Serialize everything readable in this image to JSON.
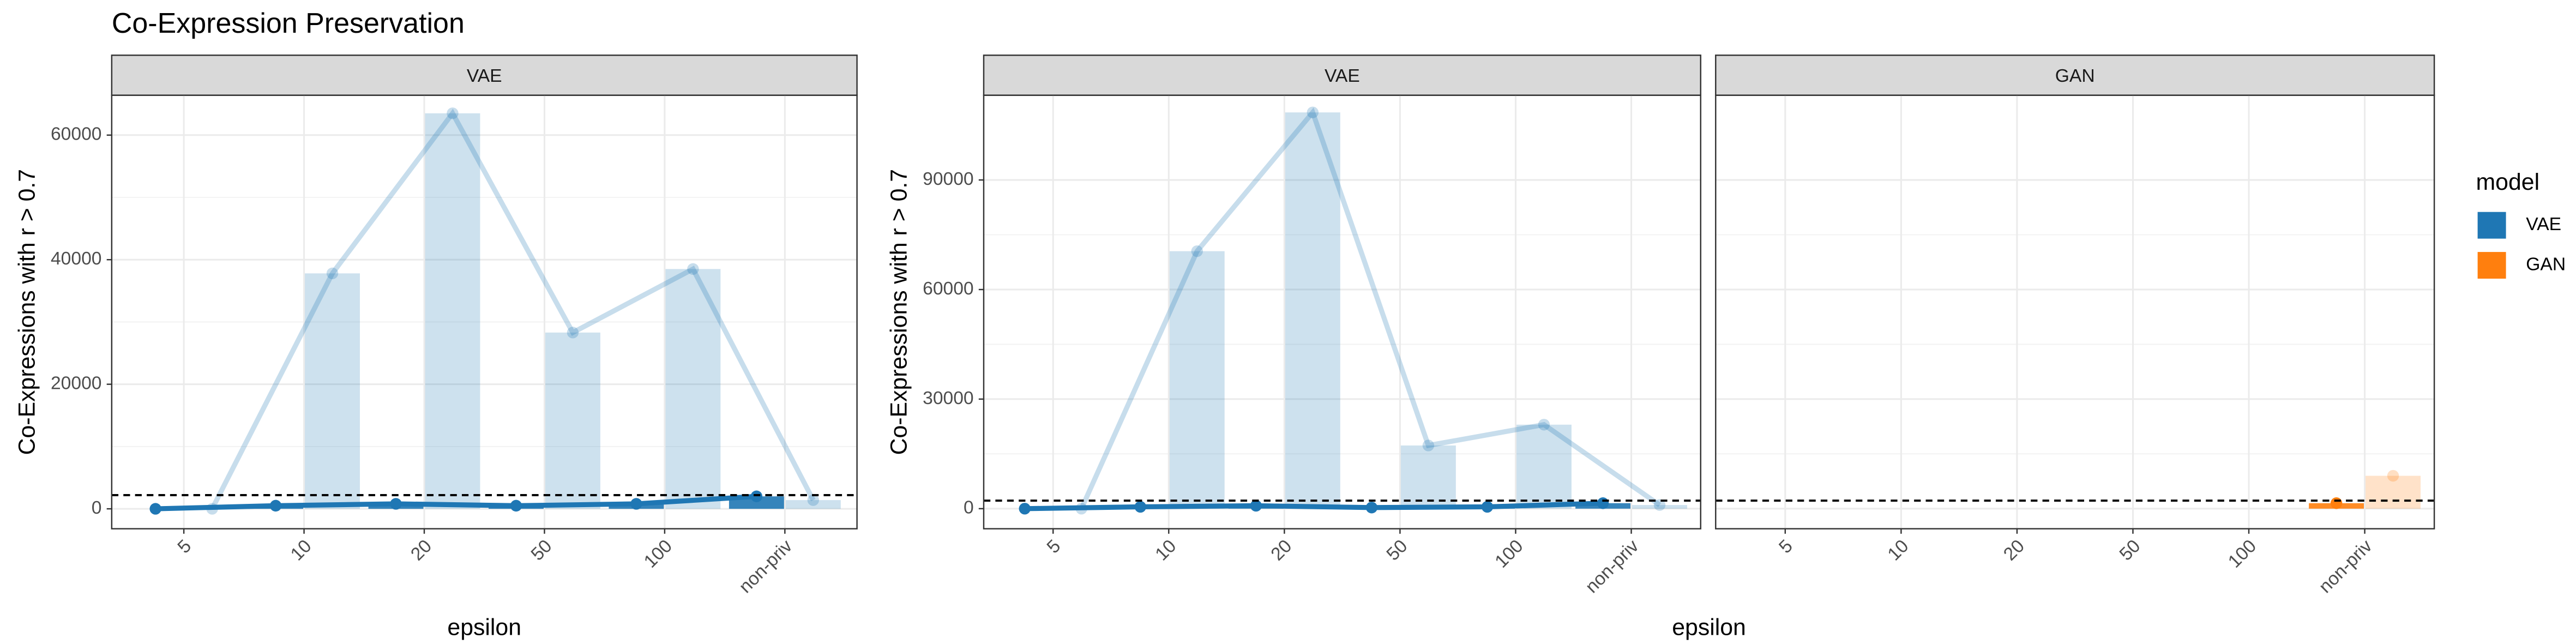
{
  "chart_data": [
    {
      "type": "bar",
      "title": "Co-Expression Preservation",
      "strip": "VAE",
      "x_label": "epsilon",
      "y_label": "Co-Expressions with r > 0.7",
      "categories": [
        "5",
        "10",
        "20",
        "50",
        "100",
        "non-priv"
      ],
      "series": [
        {
          "color": "#1f77b4",
          "opacity": 1,
          "values": [
            0,
            500,
            800,
            500,
            800,
            2000
          ]
        },
        {
          "color": "#1f77b4",
          "opacity": 0.25,
          "values": [
            0,
            37800,
            63500,
            28300,
            38500,
            1400
          ]
        }
      ],
      "hline": 2200,
      "ylim": [
        -3200,
        66400
      ],
      "yticks": [
        0,
        20000,
        40000,
        60000
      ],
      "grid": true,
      "ytick_labels": true
    },
    {
      "type": "bar",
      "strip": "VAE",
      "x_label": "epsilon",
      "y_label": "Co-Expressions with r > 0.7",
      "categories": [
        "5",
        "10",
        "20",
        "50",
        "100",
        "non-priv"
      ],
      "series": [
        {
          "color": "#1f77b4",
          "opacity": 1,
          "values": [
            0,
            500,
            800,
            300,
            500,
            1500
          ]
        },
        {
          "color": "#1f77b4",
          "opacity": 0.25,
          "values": [
            0,
            70500,
            108500,
            17300,
            23000,
            1000
          ]
        }
      ],
      "hline": 2200,
      "ylim": [
        -5500,
        113200
      ],
      "yticks": [
        0,
        30000,
        60000,
        90000
      ],
      "grid": true,
      "ytick_labels": true
    },
    {
      "type": "bar",
      "strip": "GAN",
      "categories": [
        "5",
        "10",
        "20",
        "50",
        "100",
        "non-priv"
      ],
      "series": [
        {
          "color": "#ff7f0e",
          "opacity": 1,
          "values": [
            null,
            null,
            null,
            null,
            null,
            1500
          ]
        },
        {
          "color": "#ff7f0e",
          "opacity": 0.25,
          "values": [
            null,
            null,
            null,
            null,
            null,
            9000
          ]
        }
      ],
      "hline": 2200,
      "ylim": [
        -5500,
        113200
      ],
      "yticks": [
        0,
        30000,
        60000,
        90000
      ],
      "grid": true,
      "ytick_labels": false,
      "legend": {
        "title": "model",
        "entries": [
          {
            "name": "VAE",
            "color": "#1f77b4"
          },
          {
            "name": "GAN",
            "color": "#ff7f0e"
          }
        ]
      }
    }
  ]
}
